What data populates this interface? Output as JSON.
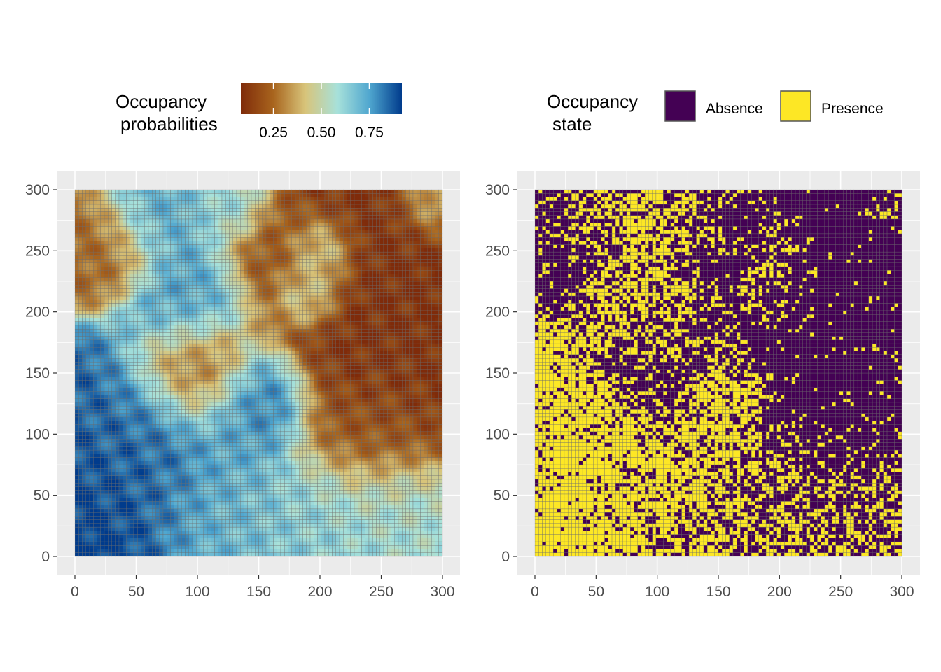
{
  "chart_data": [
    {
      "type": "heatmap",
      "panel": "left",
      "legend": {
        "title_line1": "Occupancy",
        "title_line2": "probabilities",
        "ticks": [
          "0.25",
          "0.50",
          "0.75"
        ],
        "tick_values": [
          0.25,
          0.5,
          0.75
        ],
        "range": [
          0.08,
          0.92
        ],
        "colors": [
          "#7f2b0a",
          "#a8641d",
          "#d8c47a",
          "#a7e1da",
          "#4fa6cf",
          "#003b8c"
        ],
        "placement": "top"
      },
      "xlim": [
        0,
        300
      ],
      "ylim": [
        0,
        300
      ],
      "x_ticks": [
        "0",
        "50",
        "100",
        "150",
        "200",
        "250",
        "300"
      ],
      "y_ticks": [
        "0",
        "50",
        "100",
        "150",
        "200",
        "250",
        "300"
      ],
      "x_tick_values": [
        0,
        50,
        100,
        150,
        200,
        250,
        300
      ],
      "y_tick_values": [
        0,
        50,
        100,
        150,
        200,
        250,
        300
      ],
      "grid": true,
      "cell_step": 3,
      "value_fields": [
        {
          "x": 20,
          "y": 40,
          "value": 0.92,
          "spread": 45
        },
        {
          "x": 50,
          "y": 90,
          "value": 0.82,
          "spread": 35
        },
        {
          "x": 150,
          "y": 125,
          "value": 0.85,
          "spread": 22
        },
        {
          "x": 135,
          "y": 95,
          "value": 0.72,
          "spread": 18
        },
        {
          "x": 120,
          "y": 30,
          "value": 0.68,
          "spread": 35
        },
        {
          "x": 200,
          "y": 35,
          "value": 0.62,
          "spread": 30
        },
        {
          "x": 260,
          "y": 40,
          "value": 0.58,
          "spread": 25
        },
        {
          "x": 90,
          "y": 210,
          "value": 0.74,
          "spread": 25
        },
        {
          "x": 65,
          "y": 270,
          "value": 0.72,
          "spread": 20
        },
        {
          "x": 125,
          "y": 285,
          "value": 0.62,
          "spread": 18
        },
        {
          "x": 200,
          "y": 250,
          "value": 0.62,
          "spread": 15
        },
        {
          "x": 190,
          "y": 215,
          "value": 0.55,
          "spread": 15
        },
        {
          "x": 290,
          "y": 290,
          "value": 0.5,
          "spread": 15
        },
        {
          "x": 260,
          "y": 180,
          "value": 0.1,
          "spread": 45
        },
        {
          "x": 250,
          "y": 280,
          "value": 0.1,
          "spread": 35
        },
        {
          "x": 240,
          "y": 100,
          "value": 0.2,
          "spread": 30
        },
        {
          "x": 170,
          "y": 250,
          "value": 0.2,
          "spread": 25
        },
        {
          "x": 100,
          "y": 150,
          "value": 0.25,
          "spread": 25
        },
        {
          "x": 30,
          "y": 250,
          "value": 0.25,
          "spread": 20
        }
      ]
    },
    {
      "type": "heatmap",
      "panel": "right",
      "legend": {
        "title_line1": "Occupancy",
        "title_line2": "state",
        "items": [
          {
            "label": "Absence",
            "color": "#440154"
          },
          {
            "label": "Presence",
            "color": "#fde725"
          }
        ],
        "placement": "top"
      },
      "xlim": [
        0,
        300
      ],
      "ylim": [
        0,
        300
      ],
      "x_ticks": [
        "0",
        "50",
        "100",
        "150",
        "200",
        "250",
        "300"
      ],
      "y_ticks": [
        "0",
        "50",
        "100",
        "150",
        "200",
        "250",
        "300"
      ],
      "x_tick_values": [
        0,
        50,
        100,
        150,
        200,
        250,
        300
      ],
      "y_tick_values": [
        0,
        50,
        100,
        150,
        200,
        250,
        300
      ],
      "grid": true,
      "cell_step": 3,
      "states": [
        "Absence",
        "Presence"
      ]
    }
  ],
  "colors": {
    "panel_background": "#ebebeb",
    "grid_line": "#ffffff",
    "tile_border": "#6b6b6b",
    "tick_text": "#4d4d4d"
  }
}
